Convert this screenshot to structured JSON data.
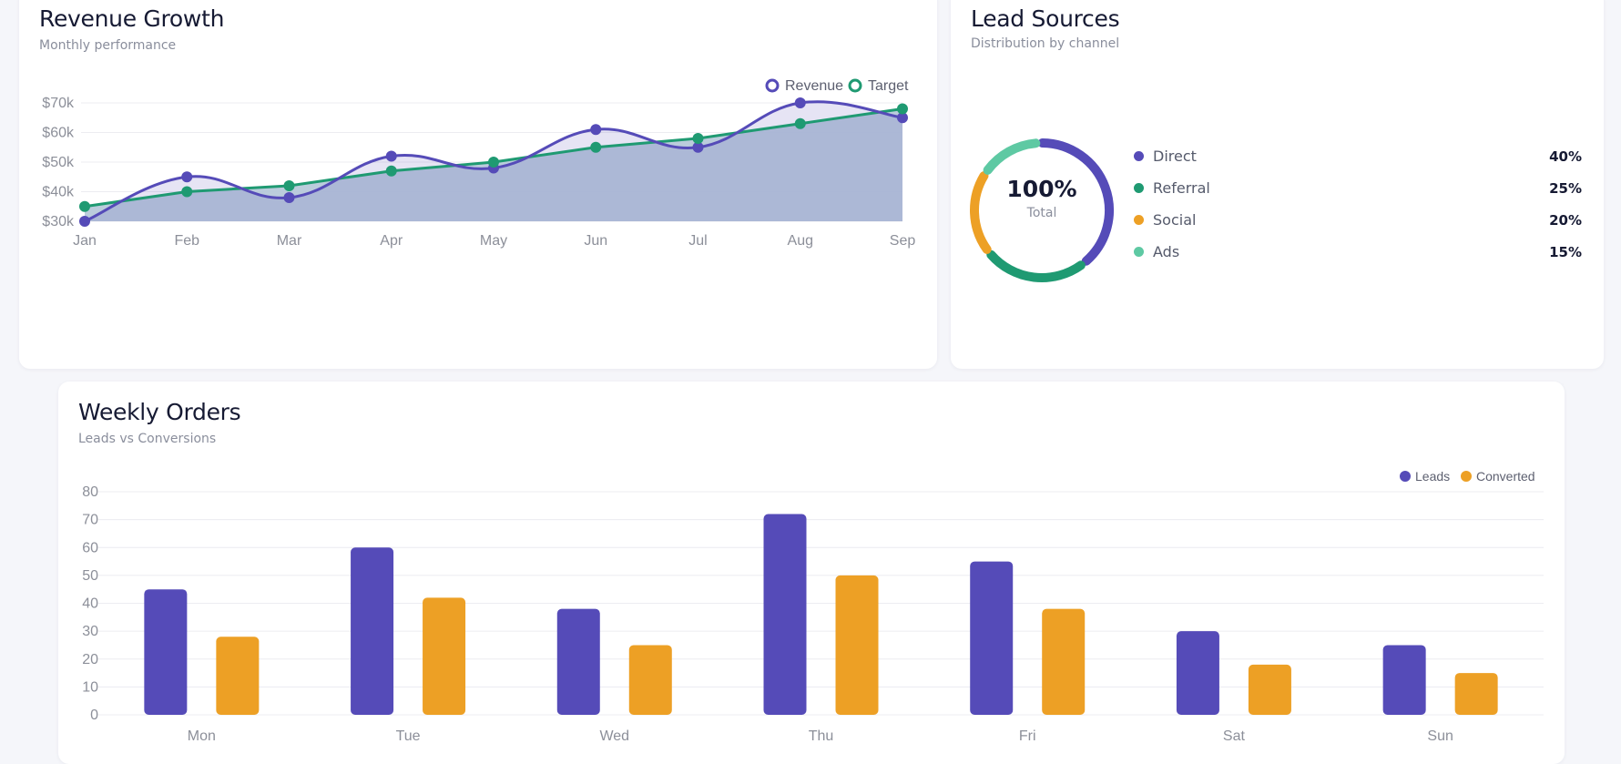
{
  "revenue_card": {
    "title": "Revenue Growth",
    "subtitle": "Monthly performance"
  },
  "leads_card": {
    "title": "Lead Sources",
    "subtitle": "Distribution by channel",
    "center_value": "100%",
    "center_label": "Total"
  },
  "orders_card": {
    "title": "Weekly Orders",
    "subtitle": "Leads vs Conversions"
  },
  "colors": {
    "purple": "#554bb8",
    "green": "#1f9a72",
    "orange": "#eda025",
    "teal": "#5ec9a3",
    "area_fill": "#b7c9da",
    "grid": "#ececf1"
  },
  "chart_data": [
    {
      "id": "revenue",
      "type": "line",
      "categories": [
        "Jan",
        "Feb",
        "Mar",
        "Apr",
        "May",
        "Jun",
        "Jul",
        "Aug",
        "Sep"
      ],
      "y_tick_labels": [
        "$30k",
        "$40k",
        "$50k",
        "$60k",
        "$70k"
      ],
      "ylim": [
        30,
        70
      ],
      "series": [
        {
          "name": "Revenue",
          "values": [
            30,
            45,
            38,
            52,
            48,
            61,
            55,
            70,
            65
          ],
          "color": "#554bb8",
          "smooth": true
        },
        {
          "name": "Target",
          "values": [
            35,
            40,
            42,
            47,
            50,
            55,
            58,
            63,
            68
          ],
          "color": "#1f9a72",
          "filled": true
        }
      ],
      "legend": "top-right",
      "grid": true
    },
    {
      "id": "lead_sources",
      "type": "pie",
      "donut": true,
      "labels": [
        "Direct",
        "Referral",
        "Social",
        "Ads"
      ],
      "values": [
        40,
        25,
        20,
        15
      ],
      "value_labels": [
        "40%",
        "25%",
        "20%",
        "15%"
      ],
      "colors": [
        "#554bb8",
        "#1f9a72",
        "#eda025",
        "#5ec9a3"
      ],
      "legend": "right"
    },
    {
      "id": "weekly_orders",
      "type": "bar",
      "categories": [
        "Mon",
        "Tue",
        "Wed",
        "Thu",
        "Fri",
        "Sat",
        "Sun"
      ],
      "y_tick_labels": [
        "0",
        "10",
        "20",
        "30",
        "40",
        "50",
        "60",
        "70",
        "80"
      ],
      "ylim": [
        0,
        80
      ],
      "series": [
        {
          "name": "Leads",
          "values": [
            45,
            60,
            38,
            72,
            55,
            30,
            25
          ],
          "color": "#554bb8"
        },
        {
          "name": "Converted",
          "values": [
            28,
            42,
            25,
            50,
            38,
            18,
            15
          ],
          "color": "#eda025"
        }
      ],
      "legend": "top-right",
      "grid": true
    }
  ]
}
